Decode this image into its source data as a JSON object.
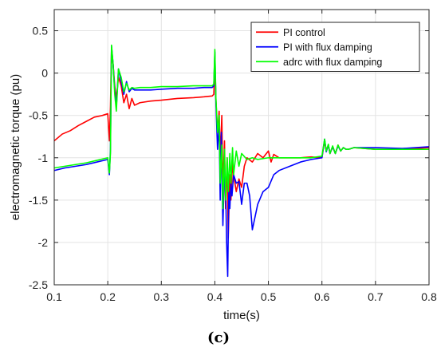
{
  "figure": {
    "caption": "(c)"
  },
  "chart_data": {
    "type": "line",
    "title": "",
    "xlabel": "time(s)",
    "ylabel": "electromagnetic torque (pu)",
    "xlim": [
      0.1,
      0.8
    ],
    "ylim": [
      -2.5,
      0.75
    ],
    "x_ticks": [
      0.1,
      0.2,
      0.3,
      0.4,
      0.5,
      0.6,
      0.7,
      0.8
    ],
    "x_tick_labels": [
      "0.1",
      "0.2",
      "0.3",
      "0.4",
      "0.5",
      "0.6",
      "0.7",
      "0.8"
    ],
    "y_ticks": [
      0.5,
      0,
      -0.5,
      -1,
      -1.5,
      -2,
      -2.5
    ],
    "y_tick_labels": [
      "0.5",
      "0",
      "-0.5",
      "-1",
      "-1.5",
      "-2",
      "-2.5"
    ],
    "grid": true,
    "legend_position": "top-right",
    "series": [
      {
        "name": "PI control",
        "color": "#ff0000",
        "x": [
          0.1,
          0.115,
          0.13,
          0.145,
          0.16,
          0.175,
          0.19,
          0.2,
          0.203,
          0.205,
          0.207,
          0.21,
          0.213,
          0.216,
          0.22,
          0.225,
          0.23,
          0.235,
          0.24,
          0.245,
          0.25,
          0.26,
          0.28,
          0.3,
          0.33,
          0.36,
          0.38,
          0.395,
          0.398,
          0.4,
          0.402,
          0.405,
          0.408,
          0.41,
          0.413,
          0.415,
          0.418,
          0.42,
          0.423,
          0.425,
          0.428,
          0.43,
          0.433,
          0.435,
          0.44,
          0.445,
          0.45,
          0.455,
          0.46,
          0.47,
          0.48,
          0.49,
          0.5,
          0.505,
          0.51,
          0.52,
          0.54,
          0.56,
          0.58,
          0.6,
          0.605,
          0.608,
          0.612,
          0.615,
          0.62,
          0.625,
          0.63,
          0.635,
          0.64,
          0.645,
          0.65,
          0.66,
          0.7,
          0.75,
          0.8
        ],
        "y": [
          -0.8,
          -0.72,
          -0.68,
          -0.62,
          -0.57,
          -0.52,
          -0.5,
          -0.48,
          -0.8,
          -0.4,
          0.28,
          0.1,
          -0.15,
          -0.3,
          -0.05,
          -0.15,
          -0.35,
          -0.25,
          -0.42,
          -0.3,
          -0.38,
          -0.35,
          -0.33,
          -0.32,
          -0.3,
          -0.29,
          -0.28,
          -0.27,
          -0.25,
          0.1,
          -0.32,
          -0.7,
          -0.45,
          -1.0,
          -0.5,
          -1.4,
          -0.8,
          -1.6,
          -1.0,
          -1.95,
          -1.2,
          -1.5,
          -1.05,
          -1.2,
          -1.4,
          -1.25,
          -1.35,
          -1.1,
          -1.0,
          -1.05,
          -0.95,
          -1.0,
          -0.92,
          -1.05,
          -0.96,
          -1.0,
          -1.0,
          -1.0,
          -0.99,
          -1.0,
          -0.8,
          -0.92,
          -0.85,
          -0.95,
          -0.87,
          -0.95,
          -0.85,
          -0.92,
          -0.88,
          -0.9,
          -0.9,
          -0.88,
          -0.9,
          -0.9,
          -0.88
        ]
      },
      {
        "name": "PI with flux damping",
        "color": "#0000ff",
        "x": [
          0.1,
          0.12,
          0.14,
          0.16,
          0.18,
          0.2,
          0.203,
          0.205,
          0.207,
          0.21,
          0.213,
          0.216,
          0.22,
          0.225,
          0.23,
          0.235,
          0.24,
          0.245,
          0.25,
          0.26,
          0.28,
          0.3,
          0.33,
          0.36,
          0.38,
          0.395,
          0.398,
          0.4,
          0.402,
          0.405,
          0.408,
          0.41,
          0.412,
          0.415,
          0.418,
          0.42,
          0.422,
          0.424,
          0.426,
          0.428,
          0.43,
          0.432,
          0.435,
          0.44,
          0.445,
          0.45,
          0.455,
          0.46,
          0.465,
          0.47,
          0.48,
          0.49,
          0.5,
          0.51,
          0.52,
          0.54,
          0.56,
          0.58,
          0.6,
          0.605,
          0.608,
          0.612,
          0.615,
          0.62,
          0.625,
          0.63,
          0.635,
          0.64,
          0.645,
          0.65,
          0.66,
          0.7,
          0.75,
          0.8
        ],
        "y": [
          -1.15,
          -1.12,
          -1.1,
          -1.08,
          -1.05,
          -1.02,
          -1.2,
          -0.9,
          0.32,
          0.1,
          -0.2,
          -0.4,
          0.05,
          -0.1,
          -0.25,
          -0.1,
          -0.22,
          -0.18,
          -0.2,
          -0.2,
          -0.2,
          -0.19,
          -0.18,
          -0.18,
          -0.17,
          -0.17,
          -0.15,
          0.25,
          -0.35,
          -0.9,
          -0.6,
          -1.5,
          -0.7,
          -1.8,
          -1.1,
          -1.3,
          -2.0,
          -2.4,
          -1.4,
          -1.6,
          -1.3,
          -1.45,
          -1.2,
          -1.3,
          -1.28,
          -1.55,
          -1.3,
          -1.3,
          -1.45,
          -1.85,
          -1.55,
          -1.4,
          -1.35,
          -1.2,
          -1.15,
          -1.1,
          -1.05,
          -1.02,
          -1.0,
          -0.78,
          -0.93,
          -0.85,
          -0.95,
          -0.87,
          -0.95,
          -0.86,
          -0.92,
          -0.88,
          -0.9,
          -0.9,
          -0.88,
          -0.88,
          -0.89,
          -0.87
        ]
      },
      {
        "name": "adrc with flux damping",
        "color": "#00ff00",
        "x": [
          0.1,
          0.12,
          0.14,
          0.16,
          0.18,
          0.2,
          0.203,
          0.205,
          0.207,
          0.21,
          0.213,
          0.216,
          0.22,
          0.225,
          0.23,
          0.235,
          0.24,
          0.245,
          0.25,
          0.26,
          0.28,
          0.3,
          0.33,
          0.36,
          0.38,
          0.395,
          0.398,
          0.4,
          0.402,
          0.405,
          0.408,
          0.41,
          0.413,
          0.415,
          0.418,
          0.42,
          0.423,
          0.425,
          0.428,
          0.43,
          0.433,
          0.435,
          0.44,
          0.445,
          0.45,
          0.46,
          0.47,
          0.48,
          0.5,
          0.52,
          0.54,
          0.56,
          0.58,
          0.6,
          0.605,
          0.608,
          0.612,
          0.615,
          0.62,
          0.625,
          0.63,
          0.635,
          0.64,
          0.645,
          0.65,
          0.66,
          0.7,
          0.75,
          0.8
        ],
        "y": [
          -1.12,
          -1.1,
          -1.08,
          -1.06,
          -1.03,
          -1.0,
          -1.18,
          -0.95,
          0.33,
          0.1,
          -0.25,
          -0.45,
          0.05,
          -0.05,
          -0.22,
          -0.12,
          -0.2,
          -0.17,
          -0.18,
          -0.17,
          -0.17,
          -0.16,
          -0.16,
          -0.15,
          -0.15,
          -0.15,
          -0.13,
          0.28,
          -0.3,
          -0.7,
          -0.5,
          -1.3,
          -0.85,
          -1.6,
          -0.9,
          -1.5,
          -1.0,
          -1.4,
          -0.95,
          -1.3,
          -0.88,
          -1.2,
          -0.92,
          -1.1,
          -0.95,
          -1.02,
          -1.0,
          -1.02,
          -1.0,
          -1.0,
          -1.0,
          -1.0,
          -1.0,
          -0.98,
          -0.78,
          -0.92,
          -0.84,
          -0.95,
          -0.86,
          -0.95,
          -0.85,
          -0.92,
          -0.88,
          -0.9,
          -0.9,
          -0.88,
          -0.9,
          -0.9,
          -0.9
        ]
      }
    ]
  }
}
